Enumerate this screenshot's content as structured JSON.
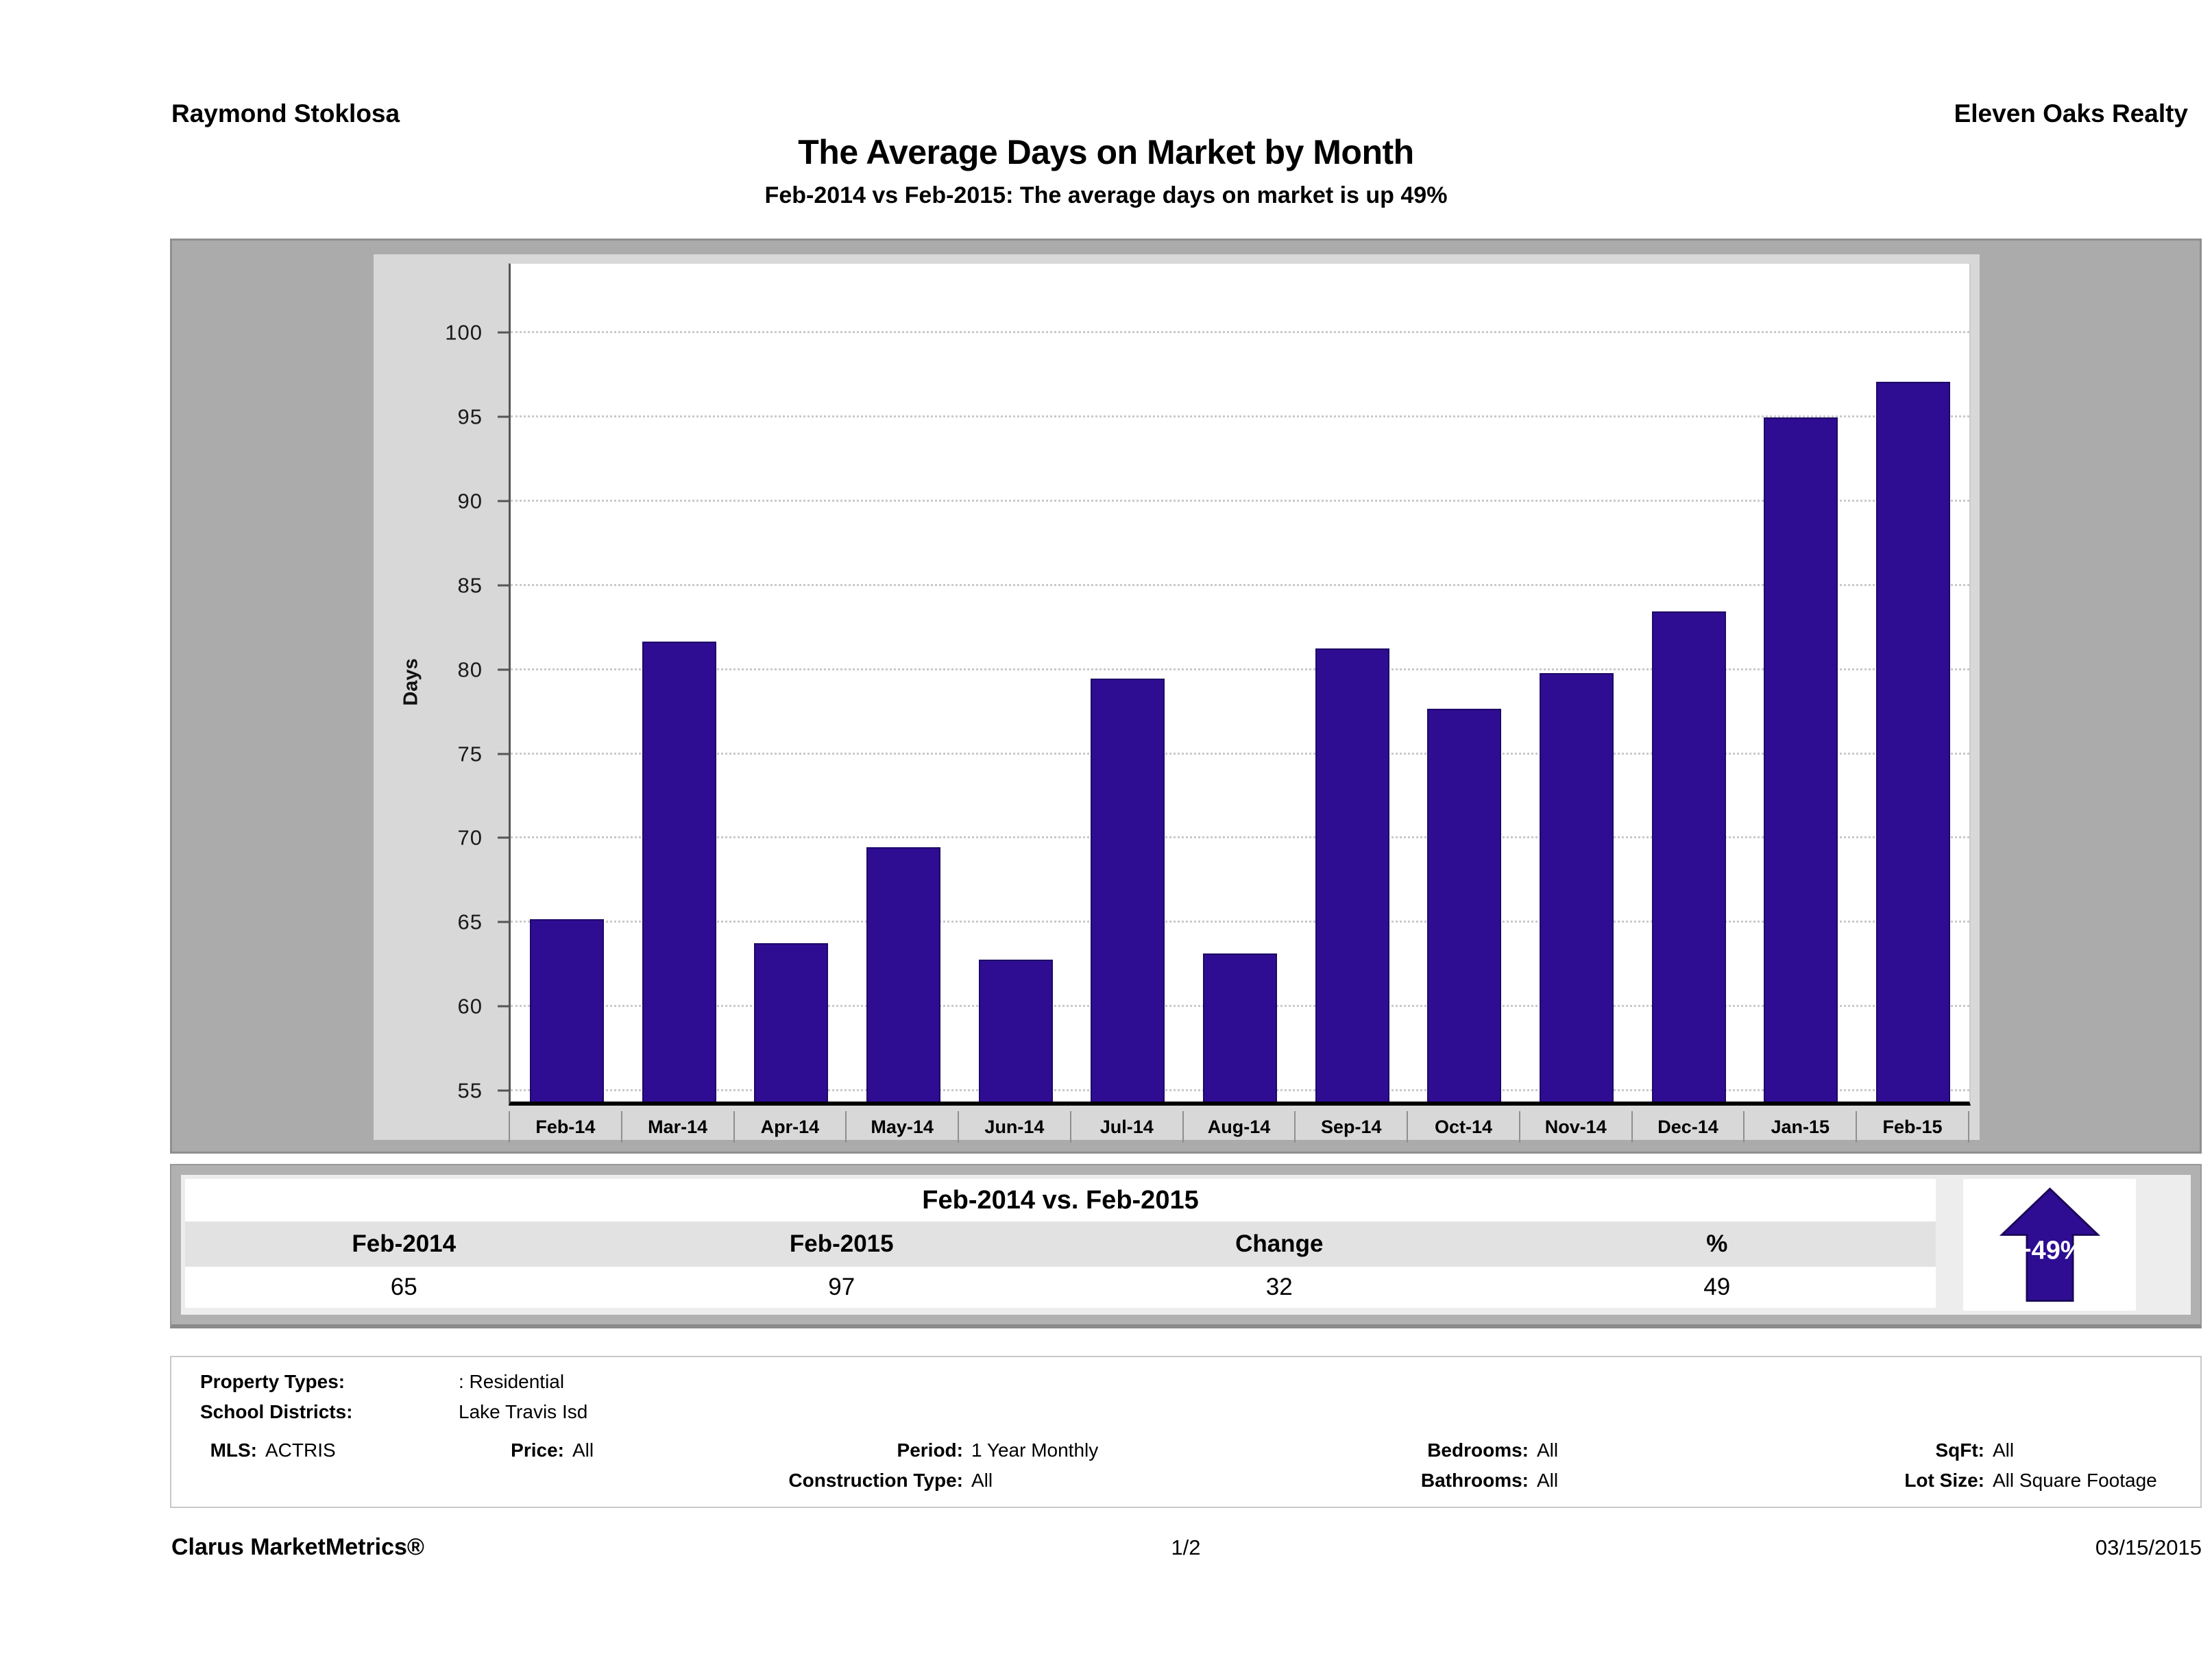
{
  "header": {
    "agent_name": "Raymond Stoklosa",
    "company": "Eleven Oaks Realty"
  },
  "title": "The Average Days on Market by Month",
  "subtitle": "Feb-2014 vs Feb-2015: The average days on market is up 49%",
  "chart_data": {
    "type": "bar",
    "title": "",
    "xlabel": "",
    "ylabel": "Days",
    "categories": [
      "Feb-14",
      "Mar-14",
      "Apr-14",
      "May-14",
      "Jun-14",
      "Jul-14",
      "Aug-14",
      "Sep-14",
      "Oct-14",
      "Nov-14",
      "Dec-14",
      "Jan-15",
      "Feb-15"
    ],
    "values": [
      65.2,
      81.7,
      63.8,
      69.5,
      62.8,
      79.5,
      63.2,
      81.3,
      77.7,
      79.8,
      83.5,
      95.0,
      97.1
    ],
    "yticks": [
      55,
      60,
      65,
      70,
      75,
      80,
      85,
      90,
      95,
      100
    ],
    "ylim": [
      54.4,
      104.1
    ],
    "grid": "horizontal-dotted",
    "legend": "none",
    "bar_color": "#2e0d92",
    "plot_background": "#ffffff",
    "panel_background": "#d8d8d8",
    "frame_background": "#ababab"
  },
  "summary": {
    "title": "Feb-2014 vs. Feb-2015",
    "columns": [
      "Feb-2014",
      "Feb-2015",
      "Change",
      "%"
    ],
    "values": [
      "65",
      "97",
      "32",
      "49"
    ],
    "badge": {
      "label": "+49%",
      "direction": "up",
      "color": "#2e0d92"
    }
  },
  "details": {
    "rows": [
      {
        "label": "Property Types:",
        "value": ": Residential"
      },
      {
        "label": "School Districts:",
        "value": "Lake Travis Isd"
      }
    ],
    "pairs": [
      {
        "row": 0,
        "anchor": "mls",
        "label": "MLS:",
        "value": "ACTRIS"
      },
      {
        "row": 0,
        "anchor": "price",
        "label": "Price:",
        "value": "All"
      },
      {
        "row": 0,
        "anchor": "period",
        "label": "Period:",
        "value": "1 Year Monthly"
      },
      {
        "row": 0,
        "anchor": "bed",
        "label": "Bedrooms:",
        "value": "All"
      },
      {
        "row": 0,
        "anchor": "sqft",
        "label": "SqFt:",
        "value": "All"
      },
      {
        "row": 1,
        "anchor": "period",
        "label": "Construction Type:",
        "value": "All"
      },
      {
        "row": 1,
        "anchor": "bed",
        "label": "Bathrooms:",
        "value": "All"
      },
      {
        "row": 1,
        "anchor": "sqft",
        "label": "Lot Size:",
        "value": "All Square Footage"
      }
    ]
  },
  "footer": {
    "left": "Clarus MarketMetrics®",
    "center": "1/2",
    "right": "03/15/2015"
  }
}
